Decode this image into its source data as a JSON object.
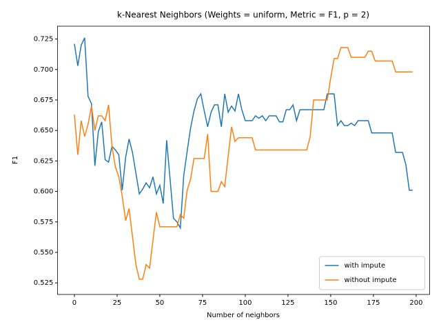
{
  "chart_data": {
    "type": "line",
    "title": "k-Nearest Neighbors (Weights = uniform, Metric = F1, p = 2)",
    "x_label": "Number of neighbors",
    "y_label": "F1",
    "x": [
      0,
      2,
      4,
      6,
      8,
      10,
      12,
      14,
      16,
      18,
      20,
      22,
      24,
      26,
      28,
      30,
      32,
      34,
      36,
      38,
      40,
      42,
      44,
      46,
      48,
      50,
      52,
      54,
      56,
      58,
      60,
      62,
      64,
      66,
      68,
      70,
      72,
      74,
      76,
      78,
      80,
      82,
      84,
      86,
      88,
      90,
      92,
      94,
      96,
      98,
      100,
      102,
      104,
      106,
      108,
      110,
      112,
      114,
      116,
      118,
      120,
      122,
      124,
      126,
      128,
      130,
      132,
      134,
      136,
      138,
      140,
      142,
      144,
      146,
      148,
      150,
      152,
      154,
      156,
      158,
      160,
      162,
      164,
      166,
      168,
      170,
      172,
      174,
      176,
      178,
      180,
      182,
      184,
      186,
      188,
      190,
      192,
      194,
      196,
      198
    ],
    "series": [
      {
        "name": "with impute",
        "color": "#1f77b4",
        "values": [
          0.721,
          0.703,
          0.72,
          0.726,
          0.678,
          0.672,
          0.621,
          0.649,
          0.657,
          0.626,
          0.624,
          0.637,
          0.634,
          0.63,
          0.601,
          0.628,
          0.643,
          0.632,
          0.615,
          0.598,
          0.602,
          0.607,
          0.603,
          0.612,
          0.598,
          0.605,
          0.59,
          0.642,
          0.61,
          0.578,
          0.575,
          0.57,
          0.613,
          0.633,
          0.652,
          0.666,
          0.676,
          0.68,
          0.666,
          0.653,
          0.665,
          0.671,
          0.671,
          0.653,
          0.68,
          0.665,
          0.67,
          0.666,
          0.68,
          0.667,
          0.658,
          0.658,
          0.658,
          0.662,
          0.66,
          0.662,
          0.658,
          0.662,
          0.662,
          0.662,
          0.657,
          0.657,
          0.667,
          0.667,
          0.671,
          0.658,
          0.667,
          0.667,
          0.667,
          0.667,
          0.667,
          0.667,
          0.667,
          0.667,
          0.68,
          0.68,
          0.68,
          0.654,
          0.658,
          0.654,
          0.654,
          0.656,
          0.654,
          0.658,
          0.658,
          0.658,
          0.658,
          0.648,
          0.648,
          0.648,
          0.648,
          0.648,
          0.648,
          0.648,
          0.632,
          0.632,
          0.632,
          0.622,
          0.601,
          0.601
        ]
      },
      {
        "name": "without impute",
        "color": "#ff7f0e",
        "values": [
          0.663,
          0.63,
          0.658,
          0.645,
          0.655,
          0.67,
          0.65,
          0.662,
          0.662,
          0.658,
          0.671,
          0.637,
          0.62,
          0.612,
          0.596,
          0.576,
          0.586,
          0.563,
          0.54,
          0.528,
          0.528,
          0.54,
          0.537,
          0.56,
          0.583,
          0.571,
          0.571,
          0.571,
          0.571,
          0.571,
          0.571,
          0.581,
          0.578,
          0.601,
          0.61,
          0.627,
          0.627,
          0.627,
          0.627,
          0.647,
          0.6,
          0.6,
          0.6,
          0.608,
          0.604,
          0.629,
          0.653,
          0.641,
          0.644,
          0.644,
          0.644,
          0.644,
          0.644,
          0.634,
          0.634,
          0.634,
          0.634,
          0.634,
          0.634,
          0.634,
          0.634,
          0.634,
          0.634,
          0.634,
          0.634,
          0.634,
          0.634,
          0.634,
          0.634,
          0.645,
          0.675,
          0.675,
          0.675,
          0.675,
          0.675,
          0.693,
          0.709,
          0.709,
          0.718,
          0.718,
          0.718,
          0.71,
          0.71,
          0.71,
          0.71,
          0.71,
          0.715,
          0.715,
          0.707,
          0.707,
          0.707,
          0.707,
          0.707,
          0.707,
          0.698,
          0.698,
          0.698,
          0.698,
          0.698,
          0.698
        ]
      }
    ],
    "xlim": [
      -9.9,
      207.9
    ],
    "ylim": [
      0.5155,
      0.7355
    ],
    "xticks": [
      0,
      25,
      50,
      75,
      100,
      125,
      150,
      175,
      200
    ],
    "yticks": [
      0.525,
      {
        "value": 0.55,
        "label": "0.550"
      },
      0.575,
      {
        "value": 0.6,
        "label": "0.600"
      },
      0.625,
      {
        "value": 0.65,
        "label": "0.650"
      },
      0.675,
      {
        "value": 0.7,
        "label": "0.700"
      },
      0.725
    ],
    "legend_position": "lower right"
  }
}
